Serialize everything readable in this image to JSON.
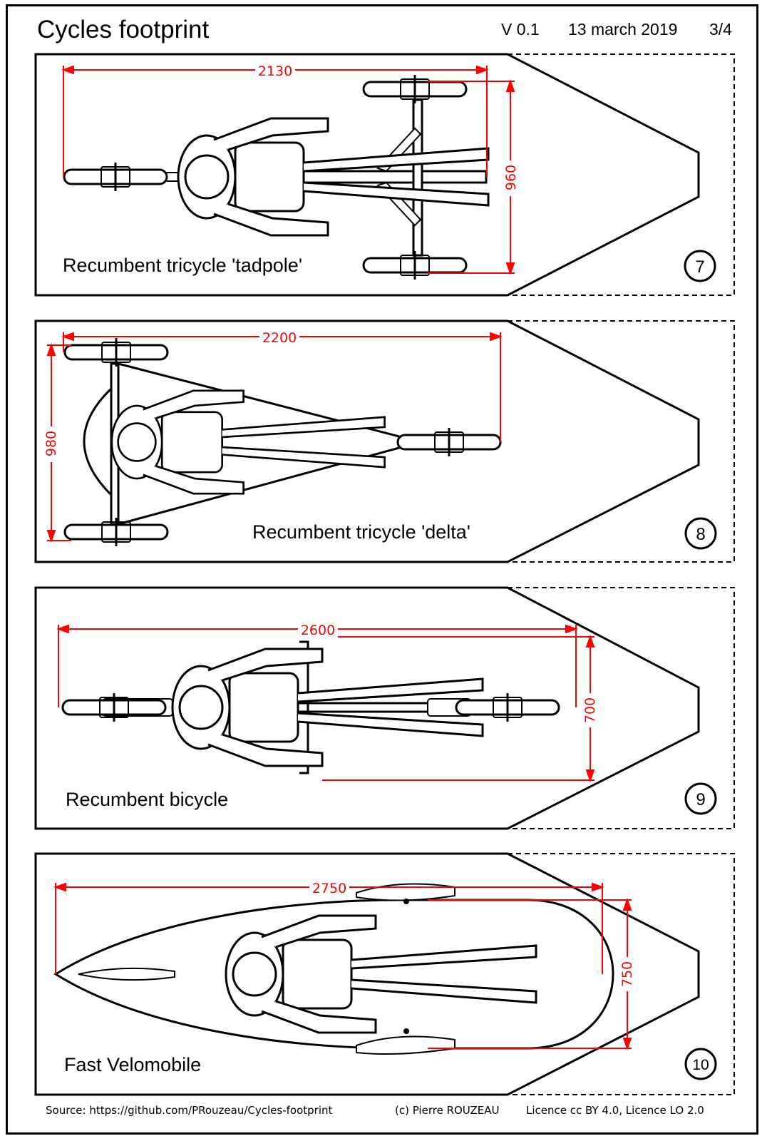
{
  "header": {
    "title": "Cycles footprint",
    "version": "V 0.1",
    "date": "13 march 2019",
    "page": "3/4"
  },
  "panels": [
    {
      "label": "Recumbent tricycle 'tadpole'",
      "number": "7",
      "length_dim": "2130",
      "width_dim": "960"
    },
    {
      "label": "Recumbent tricycle 'delta'",
      "number": "8",
      "length_dim": "2200",
      "width_dim": "980"
    },
    {
      "label": "Recumbent bicycle",
      "number": "9",
      "length_dim": "2600",
      "width_dim": "700"
    },
    {
      "label": "Fast Velomobile",
      "number": "10",
      "length_dim": "2750",
      "width_dim": "750"
    }
  ],
  "footer": {
    "source": "Source: https://github.com/PRouzeau/Cycles-footprint",
    "author": "(c) Pierre ROUZEAU",
    "licence": "Licence cc BY 4.0,  Licence LO 2.0"
  },
  "colors": {
    "dimension": "#ff0000",
    "outline": "#000000"
  }
}
